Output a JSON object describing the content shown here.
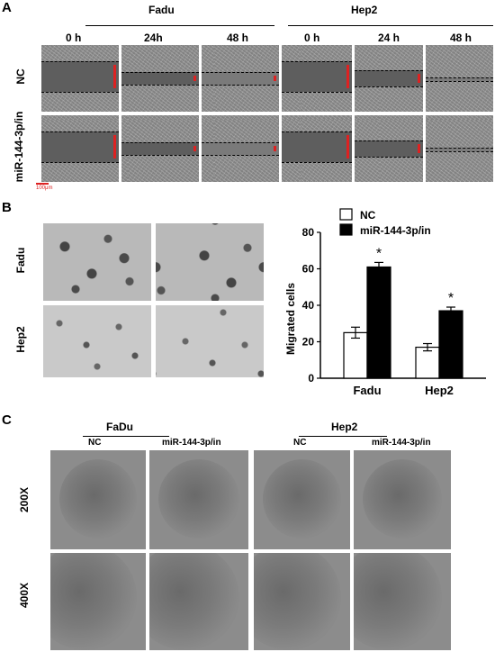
{
  "panels": {
    "A": {
      "letter": "A",
      "groups": [
        "Fadu",
        "Hep2"
      ],
      "timepoints": [
        "0 h",
        "24h",
        "48 h",
        "0 h",
        "24 h",
        "48 h"
      ],
      "rows": [
        "NC",
        "miR-144-3p/in"
      ],
      "scale_bar": "100μm"
    },
    "B": {
      "letter": "B",
      "rows": [
        "Fadu",
        "Hep2"
      ]
    },
    "C": {
      "letter": "C",
      "groups": [
        "FaDu",
        "Hep2"
      ],
      "columns": [
        "NC",
        "miR-144-3p/in",
        "NC",
        "miR-144-3p/in"
      ],
      "rows": [
        "200X",
        "400X"
      ]
    }
  },
  "chart_data": {
    "type": "bar",
    "categories": [
      "Fadu",
      "Hep2"
    ],
    "series": [
      {
        "name": "NC",
        "values": [
          25,
          17
        ],
        "errors": [
          3,
          2
        ],
        "color": "#ffffff"
      },
      {
        "name": "miR-144-3p/in",
        "values": [
          61,
          37
        ],
        "errors": [
          2.5,
          2
        ],
        "color": "#000000"
      }
    ],
    "significance": [
      "*",
      "*"
    ],
    "ylabel": "Migrated cells",
    "yticks": [
      "0",
      "20",
      "40",
      "60",
      "80"
    ],
    "ylim": [
      0,
      80
    ],
    "legend_position": "top"
  }
}
